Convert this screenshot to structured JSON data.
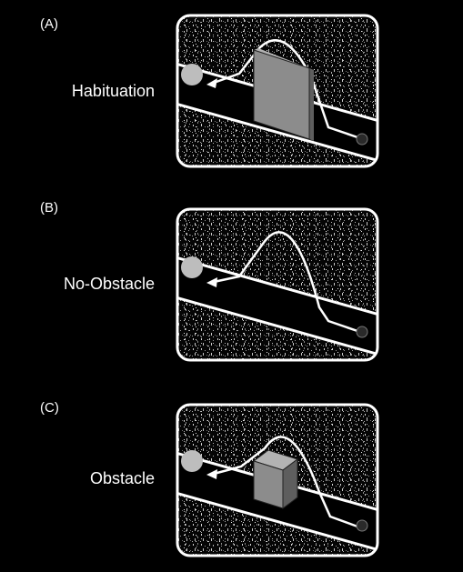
{
  "panels": [
    {
      "letter": "(A)",
      "name": "Habituation",
      "obstacle": "wall"
    },
    {
      "letter": "(B)",
      "name": "No-Obstacle",
      "obstacle": "none"
    },
    {
      "letter": "(C)",
      "name": "Obstacle",
      "obstacle": "cube"
    }
  ],
  "colors": {
    "background": "#000000",
    "frame": "#ffffff",
    "ramp": "#ffffff",
    "ball": "#bdbdbd",
    "obstacle_face": "#8c8c8c",
    "obstacle_side": "#5e5e5e",
    "obstacle_top": "#b3b3b3",
    "start_dot": "#2a2a2a"
  }
}
